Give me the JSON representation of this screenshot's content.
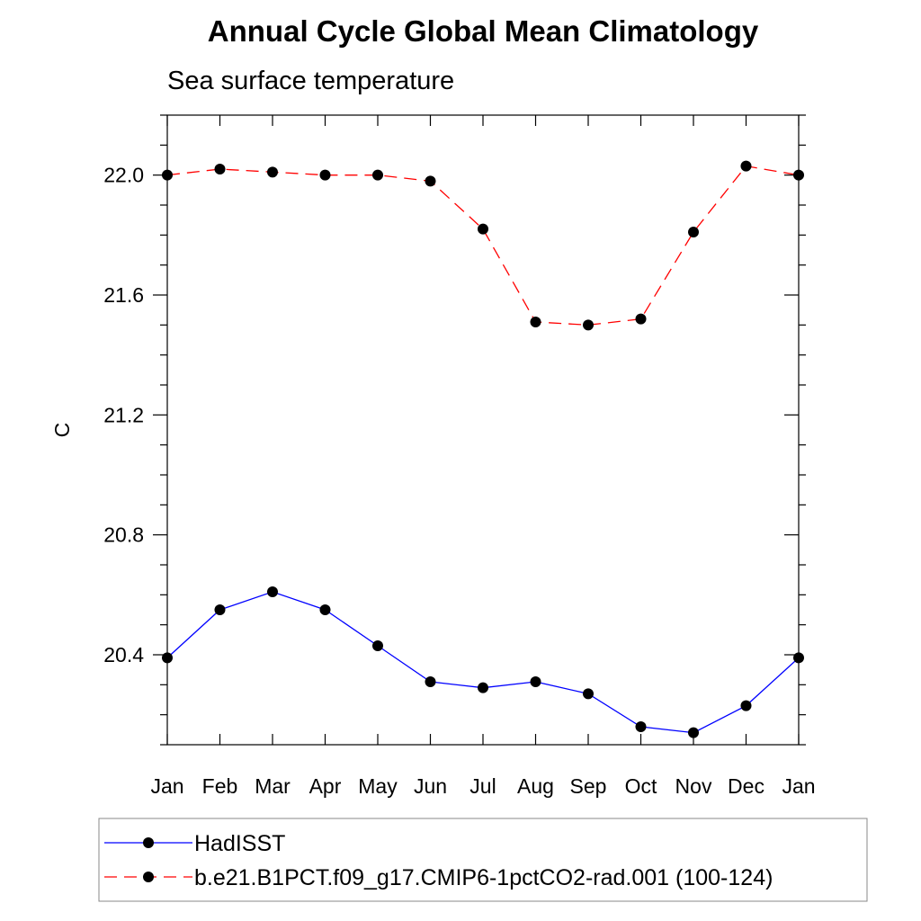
{
  "chart_data": {
    "type": "line",
    "title": "Annual Cycle Global Mean Climatology",
    "subtitle": "Sea surface temperature",
    "ylabel": "C",
    "xlabel": "",
    "categories": [
      "Jan",
      "Feb",
      "Mar",
      "Apr",
      "May",
      "Jun",
      "Jul",
      "Aug",
      "Sep",
      "Oct",
      "Nov",
      "Dec",
      "Jan"
    ],
    "ylim": [
      20.1,
      22.2
    ],
    "yticks": [
      20.4,
      20.8,
      21.2,
      21.6,
      22.0
    ],
    "ytick_labels": [
      "20.4",
      "20.8",
      "21.2",
      "21.6",
      "22.0"
    ],
    "grid": false,
    "legend_position": "bottom",
    "series": [
      {
        "name": "HadISST",
        "color": "#0000ff",
        "line_style": "solid",
        "marker": "filled-circle",
        "values": [
          20.39,
          20.55,
          20.61,
          20.55,
          20.43,
          20.31,
          20.29,
          20.31,
          20.27,
          20.16,
          20.14,
          20.23,
          20.39
        ]
      },
      {
        "name": "b.e21.B1PCT.f09_g17.CMIP6-1pctCO2-rad.001 (100-124)",
        "color": "#ff0000",
        "line_style": "dashed",
        "marker": "filled-circle",
        "values": [
          22.0,
          22.02,
          22.01,
          22.0,
          22.0,
          21.98,
          21.82,
          21.51,
          21.5,
          21.52,
          21.81,
          22.03,
          22.0
        ]
      }
    ]
  }
}
